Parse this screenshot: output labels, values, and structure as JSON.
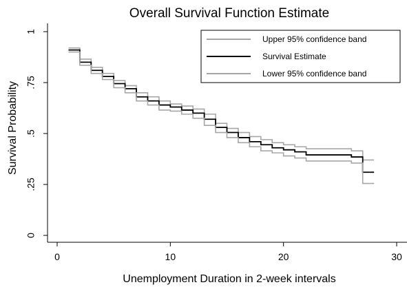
{
  "chart_data": {
    "type": "line",
    "title": "Overall Survival Function Estimate",
    "xlabel": "Unemployment Duration in 2-week intervals",
    "ylabel": "Survival Probability",
    "xlim": [
      0,
      30
    ],
    "ylim": [
      0,
      1
    ],
    "xticks": [
      0,
      10,
      20,
      30
    ],
    "xtick_labels": [
      "0",
      "10",
      "20",
      "30"
    ],
    "yticks": [
      0,
      0.25,
      0.5,
      0.75,
      1
    ],
    "ytick_labels": [
      "0",
      ".25",
      ".5",
      ".75",
      "1"
    ],
    "grid": false,
    "legend_position": "top-right",
    "step": true,
    "x": [
      1,
      2,
      3,
      4,
      5,
      6,
      7,
      8,
      9,
      10,
      11,
      12,
      13,
      14,
      15,
      16,
      17,
      18,
      19,
      20,
      21,
      22,
      23,
      24,
      25,
      26,
      27,
      28
    ],
    "series": [
      {
        "name": "Upper 95% confidence band",
        "color": "#a6a6a6",
        "values": [
          0.92,
          0.865,
          0.825,
          0.795,
          0.76,
          0.735,
          0.7,
          0.68,
          0.66,
          0.645,
          0.635,
          0.62,
          0.595,
          0.55,
          0.525,
          0.505,
          0.485,
          0.47,
          0.455,
          0.445,
          0.435,
          0.425,
          0.425,
          0.425,
          0.425,
          0.415,
          0.37,
          0.37
        ]
      },
      {
        "name": "Survival Estimate",
        "color": "#000000",
        "values": [
          0.91,
          0.85,
          0.81,
          0.78,
          0.745,
          0.72,
          0.68,
          0.66,
          0.64,
          0.63,
          0.615,
          0.6,
          0.57,
          0.53,
          0.505,
          0.48,
          0.46,
          0.445,
          0.43,
          0.42,
          0.41,
          0.395,
          0.395,
          0.395,
          0.395,
          0.385,
          0.31,
          0.31
        ]
      },
      {
        "name": "Lower 95% confidence band",
        "color": "#a6a6a6",
        "values": [
          0.9,
          0.835,
          0.795,
          0.765,
          0.725,
          0.7,
          0.66,
          0.64,
          0.615,
          0.61,
          0.595,
          0.575,
          0.54,
          0.505,
          0.48,
          0.455,
          0.435,
          0.415,
          0.405,
          0.39,
          0.38,
          0.365,
          0.365,
          0.365,
          0.365,
          0.355,
          0.255,
          0.255
        ]
      }
    ],
    "legend": [
      "Upper 95% confidence band",
      "Survival Estimate",
      "Lower 95% confidence band"
    ]
  }
}
